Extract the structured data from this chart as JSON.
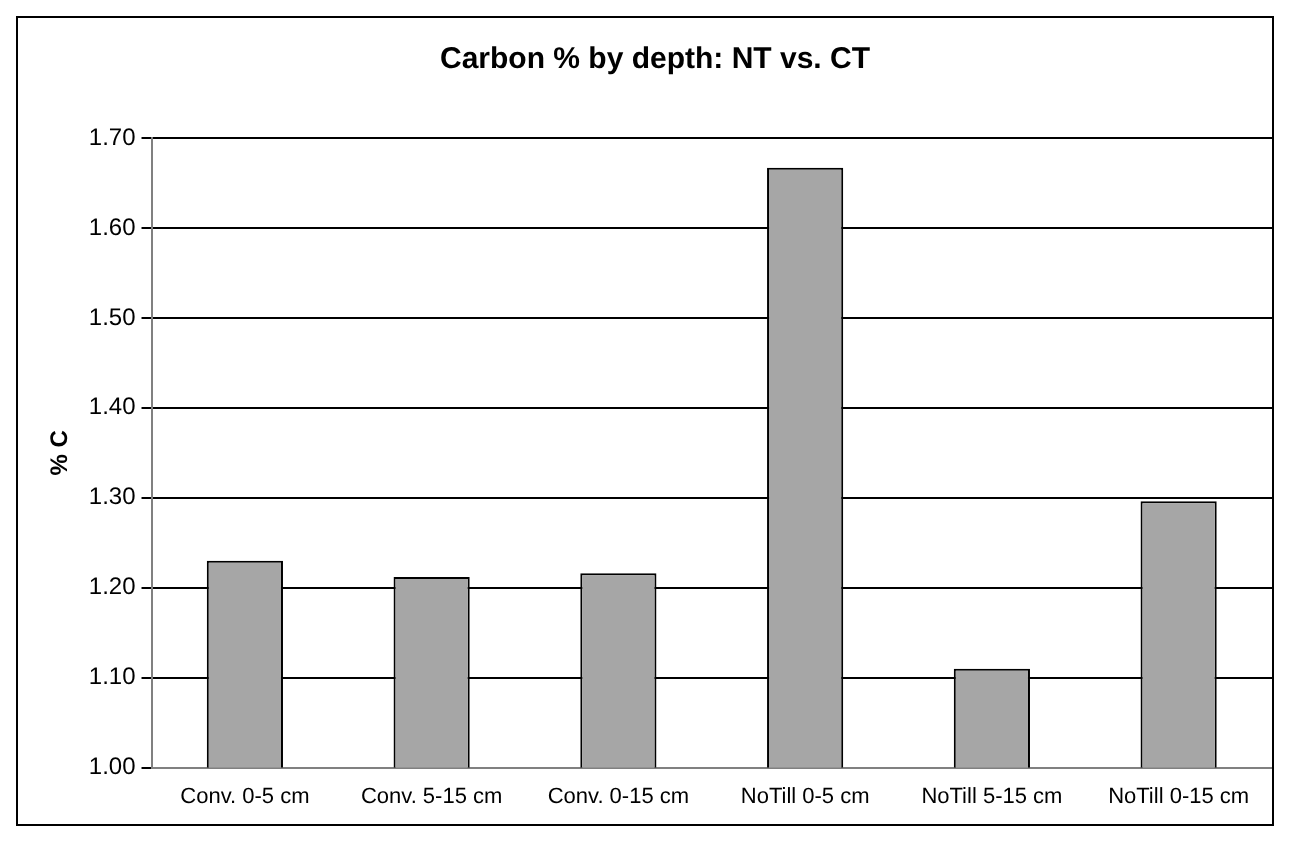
{
  "chart_data": {
    "type": "bar",
    "title": "Carbon % by depth: NT vs. CT",
    "ylabel": "% C",
    "categories": [
      "Conv. 0-5 cm",
      "Conv. 5-15 cm",
      "Conv. 0-15 cm",
      "NoTill 0-5 cm",
      "NoTill 5-15 cm",
      "NoTill 0-15 cm"
    ],
    "values": [
      1.23,
      1.212,
      1.216,
      1.667,
      1.11,
      1.296
    ],
    "color": "#a6a6a6",
    "ylim": [
      1.0,
      1.7
    ],
    "yticks": [
      {
        "value": 1.0,
        "label": "1.00"
      },
      {
        "value": 1.1,
        "label": "1.10"
      },
      {
        "value": 1.2,
        "label": "1.20"
      },
      {
        "value": 1.3,
        "label": "1.30"
      },
      {
        "value": 1.4,
        "label": "1.40"
      },
      {
        "value": 1.5,
        "label": "1.50"
      },
      {
        "value": 1.6,
        "label": "1.60"
      },
      {
        "value": 1.7,
        "label": "1.70"
      }
    ],
    "grid": "y",
    "legend": false
  }
}
